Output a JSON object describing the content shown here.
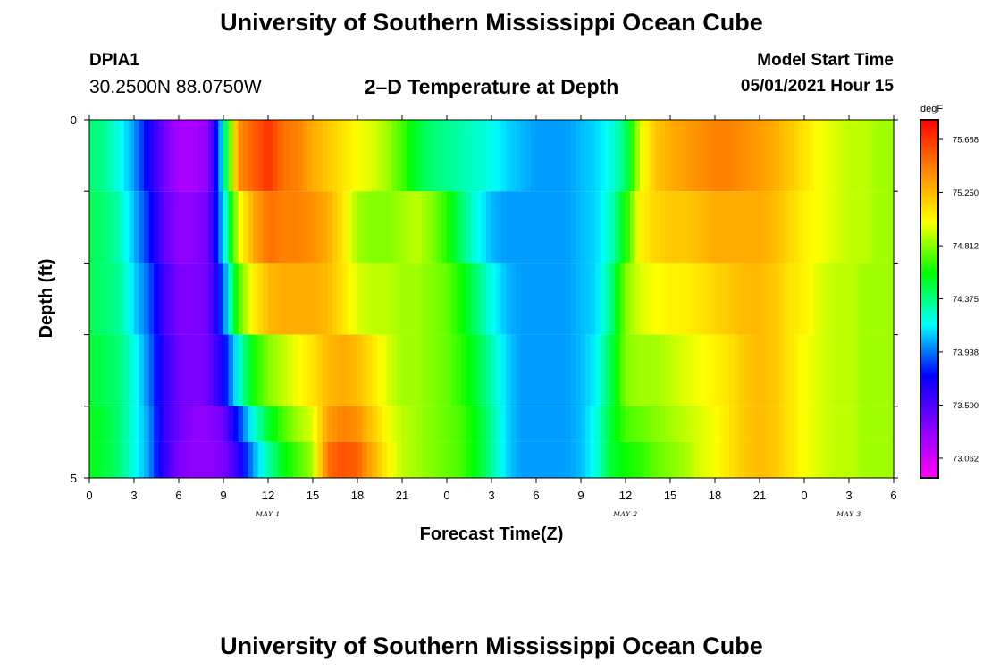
{
  "header": {
    "title": "University of Southern Mississippi Ocean Cube",
    "station_id": "DPIA1",
    "station_coords": "30.2500N  88.0750W",
    "plot_title": "2–D Temperature at Depth",
    "model_label": "Model Start Time",
    "model_time": "05/01/2021 Hour 15"
  },
  "footer": {
    "title": "University of Southern Mississippi Ocean Cube"
  },
  "chart_data": {
    "type": "heatmap",
    "title": "2–D Temperature at Depth",
    "xlabel": "Forecast Time(Z)",
    "ylabel": "Depth (ft)",
    "x_tick_labels": [
      "0",
      "3",
      "6",
      "9",
      "12",
      "15",
      "18",
      "21",
      "0",
      "3",
      "6",
      "9",
      "12",
      "15",
      "18",
      "21",
      "0",
      "3",
      "6"
    ],
    "x_range_hours": [
      0,
      54
    ],
    "date_labels": [
      {
        "hour": 12,
        "text": "MAY 1"
      },
      {
        "hour": 36,
        "text": "MAY 2"
      },
      {
        "hour": 51,
        "text": "MAY 3"
      }
    ],
    "y_tick_labels": [
      "0",
      "5"
    ],
    "y_range_ft": [
      0,
      5
    ],
    "depth_layers_ft": [
      0.25,
      1.25,
      2.25,
      3.25,
      4.25,
      4.75
    ],
    "colorbar": {
      "unit": "degF",
      "min": 72.9,
      "max": 75.85,
      "tick_labels": [
        "75.688",
        "75.250",
        "74.812",
        "74.375",
        "73.938",
        "73.500",
        "73.062"
      ],
      "colors": [
        "#ff00ff",
        "#8800ff",
        "#0000ff",
        "#00ffff",
        "#00ff00",
        "#ffff00",
        "#ff8800",
        "#ff0000"
      ]
    },
    "key_hours": [
      0,
      1,
      2,
      3,
      4,
      5,
      6,
      7,
      8,
      9,
      10,
      11,
      12,
      13,
      14,
      15,
      16,
      17,
      18,
      19,
      20,
      21,
      22,
      23,
      24,
      25,
      26,
      27,
      28,
      29,
      30,
      31,
      32,
      33,
      34,
      35,
      36,
      37,
      38,
      39,
      40,
      41,
      42,
      43,
      44,
      45,
      46,
      47,
      48,
      49,
      50,
      51,
      52,
      53,
      54
    ],
    "temperature_degF": [
      [
        74.4,
        74.35,
        74.2,
        74.0,
        73.7,
        73.4,
        73.2,
        73.2,
        73.3,
        74.2,
        75.4,
        75.55,
        75.7,
        75.5,
        75.45,
        75.3,
        75.2,
        75.1,
        75.0,
        74.95,
        74.85,
        74.7,
        74.5,
        74.4,
        74.35,
        74.3,
        74.25,
        74.2,
        74.1,
        74.05,
        74.0,
        74.0,
        74.0,
        74.05,
        74.1,
        74.2,
        74.4,
        74.95,
        75.2,
        75.3,
        75.35,
        75.4,
        75.45,
        75.45,
        75.4,
        75.35,
        75.3,
        75.2,
        75.1,
        75.0,
        74.95,
        74.9,
        74.9,
        74.85,
        74.85
      ],
      [
        74.45,
        74.4,
        74.3,
        74.05,
        73.8,
        73.45,
        73.3,
        73.3,
        73.4,
        74.1,
        74.95,
        75.3,
        75.5,
        75.45,
        75.45,
        75.4,
        75.3,
        75.1,
        74.85,
        74.8,
        74.8,
        74.85,
        74.9,
        74.8,
        74.65,
        74.4,
        74.2,
        74.05,
        74.0,
        74.0,
        74.0,
        74.0,
        74.0,
        74.05,
        74.1,
        74.25,
        74.6,
        75.05,
        75.15,
        75.2,
        75.2,
        75.25,
        75.3,
        75.3,
        75.3,
        75.3,
        75.25,
        75.15,
        75.05,
        75.0,
        74.95,
        74.9,
        74.9,
        74.85,
        74.85
      ],
      [
        74.45,
        74.4,
        74.35,
        74.1,
        73.9,
        73.55,
        73.35,
        73.35,
        73.4,
        73.9,
        74.7,
        75.05,
        75.25,
        75.3,
        75.3,
        75.3,
        75.25,
        75.1,
        74.95,
        74.9,
        74.9,
        74.85,
        74.85,
        74.8,
        74.75,
        74.6,
        74.4,
        74.2,
        74.05,
        74.0,
        74.0,
        74.0,
        74.0,
        74.05,
        74.1,
        74.35,
        74.8,
        74.95,
        75.0,
        75.05,
        75.05,
        75.1,
        75.15,
        75.2,
        75.25,
        75.25,
        75.2,
        75.1,
        75.05,
        74.95,
        74.9,
        74.9,
        74.85,
        74.85,
        74.85
      ],
      [
        74.5,
        74.45,
        74.4,
        74.2,
        73.95,
        73.6,
        73.4,
        73.35,
        73.4,
        73.7,
        74.2,
        74.6,
        74.8,
        74.9,
        75.0,
        75.1,
        75.25,
        75.3,
        75.25,
        75.1,
        74.95,
        74.85,
        74.85,
        74.8,
        74.75,
        74.65,
        74.5,
        74.3,
        74.1,
        74.0,
        74.0,
        74.0,
        74.0,
        74.05,
        74.15,
        74.45,
        74.8,
        74.85,
        74.85,
        74.9,
        74.95,
        75.0,
        75.05,
        75.1,
        75.2,
        75.25,
        75.2,
        75.1,
        75.0,
        74.95,
        74.9,
        74.9,
        74.85,
        74.85,
        74.85
      ],
      [
        74.55,
        74.5,
        74.4,
        74.2,
        74.0,
        73.6,
        73.4,
        73.3,
        73.3,
        73.4,
        73.8,
        74.2,
        74.5,
        74.7,
        74.85,
        74.95,
        75.35,
        75.45,
        75.4,
        75.2,
        75.0,
        74.9,
        74.85,
        74.8,
        74.75,
        74.7,
        74.55,
        74.35,
        74.1,
        74.0,
        74.0,
        74.0,
        74.0,
        74.05,
        74.2,
        74.5,
        74.7,
        74.75,
        74.8,
        74.85,
        74.9,
        74.95,
        75.0,
        75.1,
        75.2,
        75.25,
        75.2,
        75.1,
        75.0,
        74.95,
        74.9,
        74.9,
        74.85,
        74.85,
        74.85
      ],
      [
        74.55,
        74.5,
        74.4,
        74.2,
        74.0,
        73.6,
        73.35,
        73.3,
        73.3,
        73.35,
        73.6,
        74.0,
        74.3,
        74.55,
        74.7,
        74.85,
        75.5,
        75.6,
        75.55,
        75.3,
        75.05,
        74.9,
        74.85,
        74.8,
        74.75,
        74.7,
        74.55,
        74.35,
        74.1,
        74.0,
        74.0,
        74.0,
        74.0,
        74.05,
        74.2,
        74.5,
        74.6,
        74.65,
        74.75,
        74.8,
        74.85,
        74.95,
        75.0,
        75.1,
        75.2,
        75.25,
        75.2,
        75.1,
        75.0,
        74.95,
        74.9,
        74.9,
        74.85,
        74.85,
        74.85
      ]
    ]
  }
}
